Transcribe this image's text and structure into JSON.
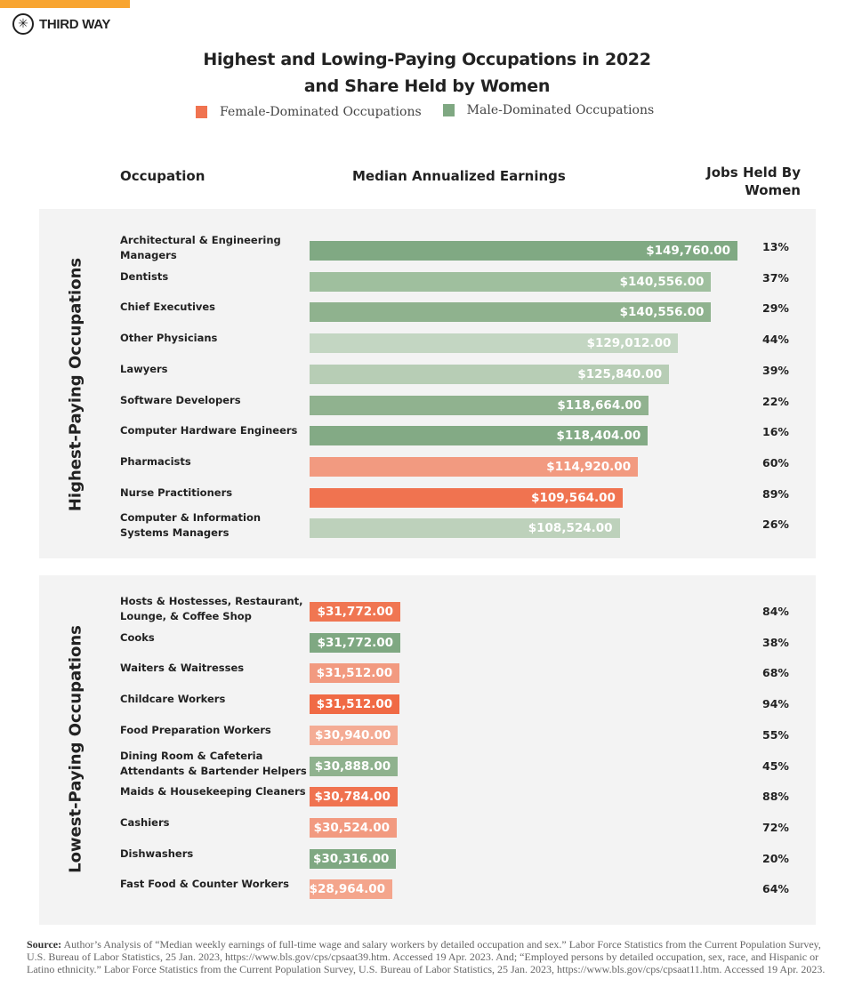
{
  "brand": {
    "name": "THIRD WAY",
    "accent": "#f8a531",
    "logo_icon": "compass-star-icon"
  },
  "chart_data": {
    "type": "bar",
    "orientation": "horizontal",
    "title": "Highest and Lowing-Paying Occupations in 2022",
    "subtitle": "and Share Held by Women",
    "legend": [
      {
        "name": "Female-Dominated Occupations",
        "color": "#f07350"
      },
      {
        "name": "Male-Dominated Occupations",
        "color": "#7fa882"
      }
    ],
    "legend_placement": "top",
    "columns": {
      "occupation": "Occupation",
      "earnings": "Median Annualized Earnings",
      "share": "Jobs Held By Women"
    },
    "x_range": [
      0,
      149760
    ],
    "groups": [
      {
        "name": "Highest-Paying Occupations",
        "rows": [
          {
            "occupation": "Architectural & Engineering Managers",
            "value": 149760,
            "label": "$149,760.00",
            "share": "13%",
            "color": "#80a983"
          },
          {
            "occupation": "Dentists",
            "value": 140556,
            "label": "$140,556.00",
            "share": "37%",
            "color": "#9fbf9e"
          },
          {
            "occupation": "Chief Executives",
            "value": 140556,
            "label": "$140,556.00",
            "share": "29%",
            "color": "#8fb28e"
          },
          {
            "occupation": "Other Physicians",
            "value": 129012,
            "label": "$129,012.00",
            "share": "44%",
            "color": "#c3d6c2"
          },
          {
            "occupation": "Lawyers",
            "value": 125840,
            "label": "$125,840.00",
            "share": "39%",
            "color": "#b7cdb5"
          },
          {
            "occupation": "Software Developers",
            "value": 118664,
            "label": "$118,664.00",
            "share": "22%",
            "color": "#90b28f"
          },
          {
            "occupation": "Computer Hardware Engineers",
            "value": 118404,
            "label": "$118,404.00",
            "share": "16%",
            "color": "#83aa85"
          },
          {
            "occupation": "Pharmacists",
            "value": 114920,
            "label": "$114,920.00",
            "share": "60%",
            "color": "#f29a80"
          },
          {
            "occupation": "Nurse Practitioners",
            "value": 109564,
            "label": "$109,564.00",
            "share": "89%",
            "color": "#f07350"
          },
          {
            "occupation": "Computer & Information Systems Managers",
            "value": 108524,
            "label": "$108,524.00",
            "share": "26%",
            "color": "#bdd1bb"
          }
        ]
      },
      {
        "name": "Lowest-Paying Occupations",
        "rows": [
          {
            "occupation": "Hosts & Hostesses, Restaurant, Lounge, & Coffee Shop",
            "value": 31772,
            "label": "$31,772.00",
            "share": "84%",
            "color": "#f07652"
          },
          {
            "occupation": "Cooks",
            "value": 31772,
            "label": "$31,772.00",
            "share": "38%",
            "color": "#7fa882"
          },
          {
            "occupation": "Waiters & Waitresses",
            "value": 31512,
            "label": "$31,512.00",
            "share": "68%",
            "color": "#f29a80"
          },
          {
            "occupation": "Childcare Workers",
            "value": 31512,
            "label": "$31,512.00",
            "share": "94%",
            "color": "#f06a45"
          },
          {
            "occupation": "Food Preparation Workers",
            "value": 30940,
            "label": "$30,940.00",
            "share": "55%",
            "color": "#f4ac95"
          },
          {
            "occupation": "Dining Room & Cafeteria Attendants & Bartender Helpers",
            "value": 30888,
            "label": "$30,888.00",
            "share": "45%",
            "color": "#8fb28e"
          },
          {
            "occupation": "Maids & Housekeeping Cleaners",
            "value": 30784,
            "label": "$30,784.00",
            "share": "88%",
            "color": "#f07350"
          },
          {
            "occupation": "Cashiers",
            "value": 30524,
            "label": "$30,524.00",
            "share": "72%",
            "color": "#f29a80"
          },
          {
            "occupation": "Dishwashers",
            "value": 30316,
            "label": "$30,316.00",
            "share": "20%",
            "color": "#7fa882"
          },
          {
            "occupation": "Fast Food & Counter Workers",
            "value": 28964,
            "label": "$28,964.00",
            "share": "64%",
            "color": "#f4a58c"
          }
        ]
      }
    ]
  },
  "source": {
    "label": "Source:",
    "text": "Author’s Analysis of “Median weekly earnings of full-time wage and salary workers by detailed occupation and sex.”  Labor Force Statistics from the Current Population Survey, U.S. Bureau of Labor Statistics, 25 Jan. 2023, https://www.bls.gov/cps/cpsaat39.htm. Accessed 19 Apr. 2023. And; “Employed persons by detailed occupation, sex, race, and Hispanic or Latino ethnicity.” Labor Force Statistics from the Current Population Survey, U.S. Bureau of Labor Statistics, 25 Jan. 2023, https://www.bls.gov/cps/cpsaat11.htm. Accessed 19 Apr. 2023."
  }
}
